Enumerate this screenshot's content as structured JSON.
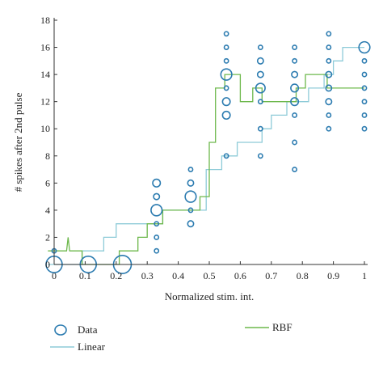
{
  "chart_data": {
    "type": "scatter",
    "title": "",
    "xlabel": "Normalized stim. int.",
    "ylabel": "# spikes after 2nd pulse",
    "xlim": [
      0,
      1
    ],
    "ylim": [
      0,
      18
    ],
    "xticks": [
      0,
      0.1,
      0.2,
      0.3,
      0.4,
      0.5,
      0.6,
      0.7,
      0.8,
      0.9,
      1
    ],
    "xtick_labels": [
      "0",
      "0.1",
      "0.2",
      "0.3",
      "0.4",
      "0.5",
      "0.6",
      "0.7",
      "0.8",
      "0.9",
      "1"
    ],
    "yticks": [
      0,
      2,
      4,
      6,
      8,
      10,
      12,
      14,
      16,
      18
    ],
    "ytick_labels": [
      "0",
      "2",
      "4",
      "6",
      "8",
      "10",
      "12",
      "14",
      "16",
      "18"
    ],
    "grid": false,
    "legend_placement": "bottom",
    "colors": {
      "data": "#2b7bb0",
      "linear": "#8ecbd8",
      "rbf": "#6db84c",
      "axis": "#333333"
    },
    "series": [
      {
        "name": "Data",
        "kind": "scatter",
        "note_size_is_count": true,
        "points": [
          {
            "x": 0,
            "y": 0,
            "n": 8
          },
          {
            "x": 0,
            "y": 1,
            "n": 1
          },
          {
            "x": 0.11,
            "y": 0,
            "n": 8
          },
          {
            "x": 0.22,
            "y": 0,
            "n": 9
          },
          {
            "x": 0.33,
            "y": 1,
            "n": 1
          },
          {
            "x": 0.33,
            "y": 2,
            "n": 1
          },
          {
            "x": 0.33,
            "y": 3,
            "n": 1
          },
          {
            "x": 0.33,
            "y": 4,
            "n": 5
          },
          {
            "x": 0.33,
            "y": 5,
            "n": 2
          },
          {
            "x": 0.33,
            "y": 6,
            "n": 3
          },
          {
            "x": 0.44,
            "y": 3,
            "n": 2
          },
          {
            "x": 0.44,
            "y": 4,
            "n": 1
          },
          {
            "x": 0.44,
            "y": 5,
            "n": 5
          },
          {
            "x": 0.44,
            "y": 6,
            "n": 2
          },
          {
            "x": 0.44,
            "y": 7,
            "n": 1
          },
          {
            "x": 0.555,
            "y": 8,
            "n": 1
          },
          {
            "x": 0.555,
            "y": 11,
            "n": 3
          },
          {
            "x": 0.555,
            "y": 12,
            "n": 3
          },
          {
            "x": 0.555,
            "y": 13,
            "n": 1
          },
          {
            "x": 0.555,
            "y": 14,
            "n": 5
          },
          {
            "x": 0.555,
            "y": 15,
            "n": 1
          },
          {
            "x": 0.555,
            "y": 16,
            "n": 1
          },
          {
            "x": 0.555,
            "y": 17,
            "n": 1
          },
          {
            "x": 0.665,
            "y": 8,
            "n": 1
          },
          {
            "x": 0.665,
            "y": 10,
            "n": 1
          },
          {
            "x": 0.665,
            "y": 12,
            "n": 1
          },
          {
            "x": 0.665,
            "y": 13,
            "n": 4
          },
          {
            "x": 0.665,
            "y": 14,
            "n": 2
          },
          {
            "x": 0.665,
            "y": 15,
            "n": 2
          },
          {
            "x": 0.665,
            "y": 16,
            "n": 1
          },
          {
            "x": 0.775,
            "y": 7,
            "n": 1
          },
          {
            "x": 0.775,
            "y": 9,
            "n": 1
          },
          {
            "x": 0.775,
            "y": 11,
            "n": 1
          },
          {
            "x": 0.775,
            "y": 12,
            "n": 3
          },
          {
            "x": 0.775,
            "y": 13,
            "n": 3
          },
          {
            "x": 0.775,
            "y": 14,
            "n": 2
          },
          {
            "x": 0.775,
            "y": 15,
            "n": 1
          },
          {
            "x": 0.775,
            "y": 16,
            "n": 1
          },
          {
            "x": 0.885,
            "y": 10,
            "n": 1
          },
          {
            "x": 0.885,
            "y": 11,
            "n": 1
          },
          {
            "x": 0.885,
            "y": 12,
            "n": 2
          },
          {
            "x": 0.885,
            "y": 13,
            "n": 2
          },
          {
            "x": 0.885,
            "y": 14,
            "n": 2
          },
          {
            "x": 0.885,
            "y": 15,
            "n": 1
          },
          {
            "x": 0.885,
            "y": 16,
            "n": 1
          },
          {
            "x": 0.885,
            "y": 17,
            "n": 1
          },
          {
            "x": 1,
            "y": 10,
            "n": 1
          },
          {
            "x": 1,
            "y": 11,
            "n": 1
          },
          {
            "x": 1,
            "y": 12,
            "n": 1
          },
          {
            "x": 1,
            "y": 13,
            "n": 1
          },
          {
            "x": 1,
            "y": 14,
            "n": 1
          },
          {
            "x": 1,
            "y": 15,
            "n": 1
          },
          {
            "x": 1,
            "y": 16,
            "n": 5
          }
        ]
      },
      {
        "name": "Linear",
        "kind": "step",
        "x": [
          -0.02,
          0.09,
          0.09,
          0.16,
          0.16,
          0.2,
          0.2,
          0.28,
          0.28,
          0.32,
          0.32,
          0.35,
          0.35,
          0.49,
          0.49,
          0.54,
          0.54,
          0.59,
          0.59,
          0.62,
          0.62,
          0.67,
          0.67,
          0.7,
          0.7,
          0.75,
          0.75,
          0.79,
          0.79,
          0.82,
          0.82,
          0.87,
          0.87,
          0.9,
          0.9,
          0.93,
          0.93,
          0.96,
          0.96,
          1
        ],
        "y": [
          0,
          0,
          1,
          1,
          2,
          2,
          3,
          3,
          3,
          3,
          3,
          3,
          4,
          4,
          7,
          7,
          8,
          8,
          9,
          9,
          9,
          9,
          10,
          10,
          11,
          11,
          12,
          12,
          12,
          12,
          13,
          13,
          14,
          14,
          15,
          15,
          16,
          16,
          16,
          16
        ]
      },
      {
        "name": "RBF",
        "kind": "step",
        "x": [
          -0.02,
          0.04,
          0.04,
          0.045,
          0.05,
          0.055,
          0.055,
          0.09,
          0.09,
          0.21,
          0.21,
          0.27,
          0.27,
          0.3,
          0.3,
          0.32,
          0.32,
          0.35,
          0.35,
          0.47,
          0.47,
          0.5,
          0.5,
          0.52,
          0.52,
          0.55,
          0.55,
          0.6,
          0.6,
          0.62,
          0.62,
          0.64,
          0.64,
          0.67,
          0.67,
          0.7,
          0.7,
          0.78,
          0.78,
          0.81,
          0.81,
          0.84,
          0.84,
          0.88,
          0.88,
          0.9,
          0.9,
          1
        ],
        "y": [
          1,
          1,
          1,
          2,
          1,
          1,
          1,
          1,
          0,
          0,
          1,
          1,
          2,
          2,
          3,
          3,
          3,
          3,
          4,
          4,
          5,
          5,
          9,
          9,
          13,
          13,
          14,
          14,
          12,
          12,
          12,
          12,
          13,
          13,
          12,
          12,
          12,
          12,
          13,
          13,
          14,
          14,
          14,
          14,
          13,
          13,
          13,
          13
        ]
      }
    ]
  },
  "legend": {
    "data_label": "Data",
    "linear_label": "Linear",
    "rbf_label": "RBF"
  }
}
